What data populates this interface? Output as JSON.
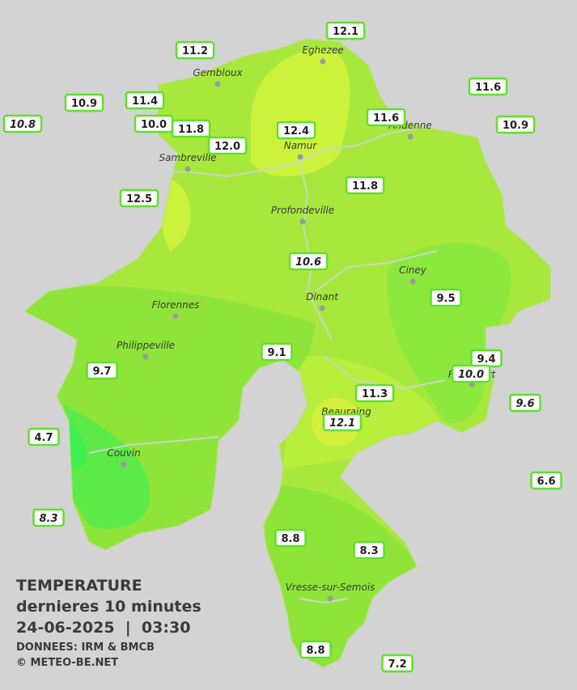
{
  "header": {
    "lines": [
      "TEMPERATURE",
      "dernieres 10 minutes",
      "24-06-2025  |  03:30"
    ],
    "source": "DONNEES: IRM & BMCB",
    "copyright": "© METEO-BE.NET"
  },
  "towns": [
    "Eghezee",
    "Gembloux",
    "Andenne",
    "Namur",
    "Sambreville",
    "Profondeville",
    "Ciney",
    "Florennes",
    "Dinant",
    "Philippeville",
    "Couvin",
    "Vresse-sur-Semois",
    "Beauraing",
    "Rochefort"
  ],
  "stations": [
    {
      "label": "12.1",
      "italic": false
    },
    {
      "label": "11.2",
      "italic": false
    },
    {
      "label": "11.6",
      "italic": false
    },
    {
      "label": "10.9",
      "italic": false
    },
    {
      "label": "11.4",
      "italic": false
    },
    {
      "label": "10.8",
      "italic": true
    },
    {
      "label": "10.0",
      "italic": false
    },
    {
      "label": "11.8",
      "italic": false
    },
    {
      "label": "12.4",
      "italic": false
    },
    {
      "label": "11.6",
      "italic": false
    },
    {
      "label": "10.9",
      "italic": false
    },
    {
      "label": "12.0",
      "italic": false
    },
    {
      "label": "12.5",
      "italic": false
    },
    {
      "label": "11.8",
      "italic": false
    },
    {
      "label": "10.6",
      "italic": true
    },
    {
      "label": "9.5",
      "italic": false
    },
    {
      "label": "9.1",
      "italic": false
    },
    {
      "label": "9.7",
      "italic": false
    },
    {
      "label": "9.4",
      "italic": false
    },
    {
      "label": "10.0",
      "italic": true
    },
    {
      "label": "11.3",
      "italic": false
    },
    {
      "label": "9.6",
      "italic": true
    },
    {
      "label": "12.1",
      "italic": true
    },
    {
      "label": "4.7",
      "italic": false
    },
    {
      "label": "6.6",
      "italic": false
    },
    {
      "label": "8.3",
      "italic": true
    },
    {
      "label": "8.8",
      "italic": false
    },
    {
      "label": "8.3",
      "italic": false
    },
    {
      "label": "8.8",
      "italic": false
    },
    {
      "label": "7.2",
      "italic": false
    }
  ]
}
